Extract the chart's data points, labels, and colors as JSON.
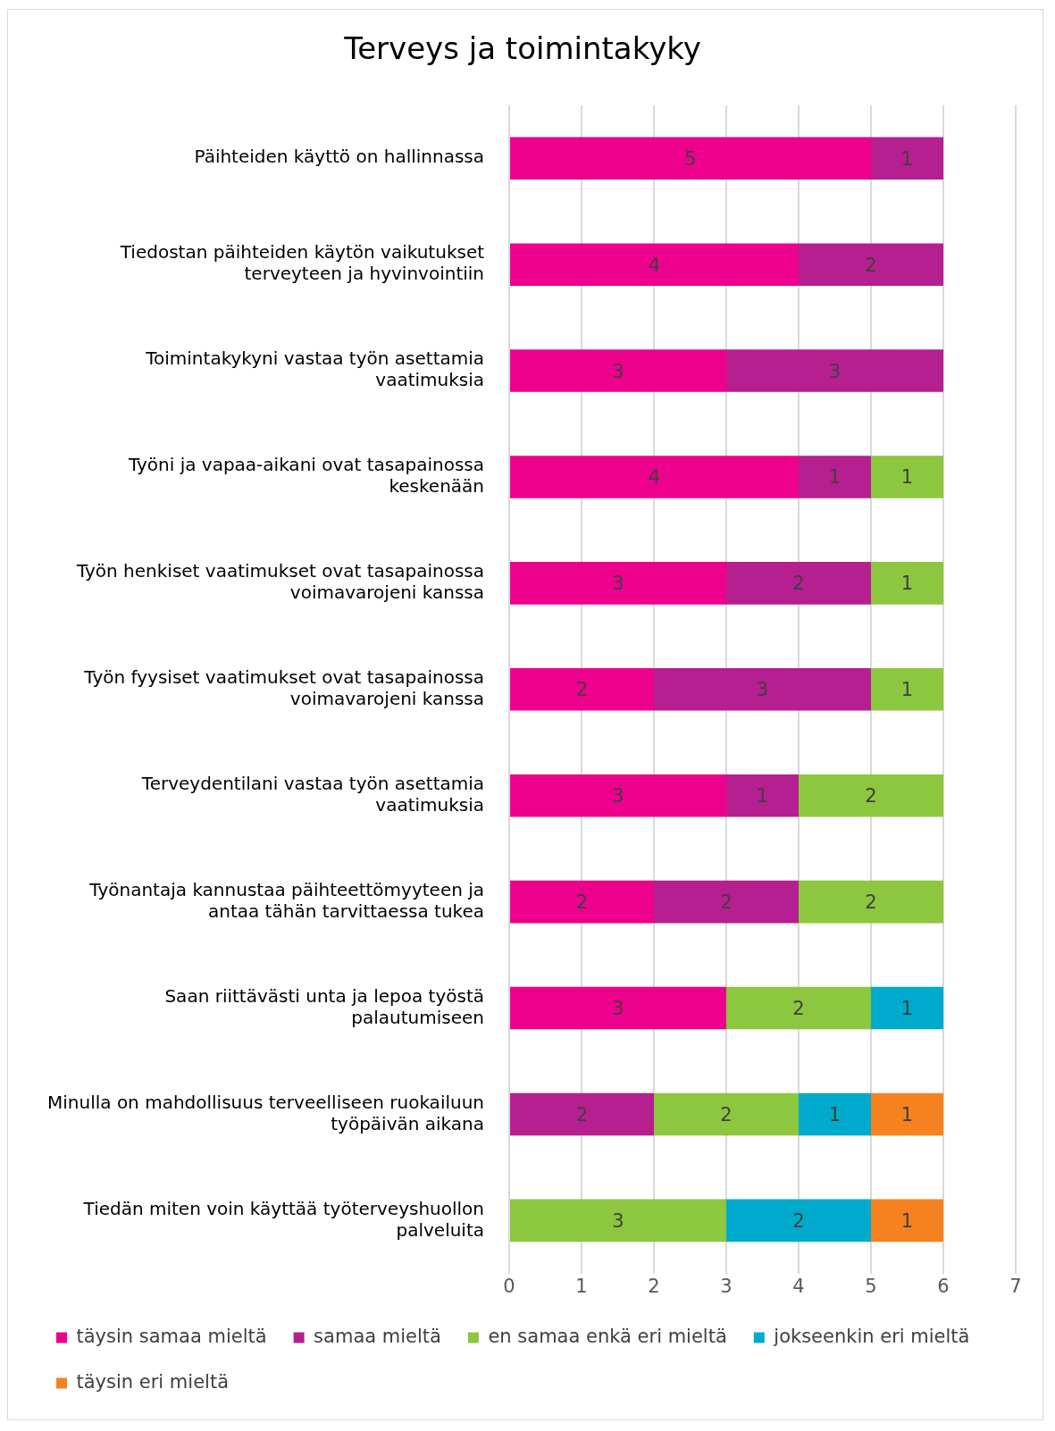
{
  "chart_data": {
    "type": "bar",
    "title": "Terveys ja toimintakyky",
    "orientation": "horizontal",
    "stacked": true,
    "data_labels": true,
    "grid": "x",
    "legend": "bottom",
    "categories": [
      "Päihteiden käyttö on hallinnassa",
      "Tiedostan päihteiden käytön vaikutukset terveyteen ja hyvinvointiin",
      "Toimintakykyni vastaa työn asettamia vaatimuksia",
      "Työni ja vapaa-aikani ovat tasapainossa keskenään",
      "Työn henkiset vaatimukset ovat tasapainossa voimavarojeni kanssa",
      "Työn fyysiset vaatimukset ovat tasapainossa voimavarojeni kanssa",
      "Terveydentilani vastaa työn asettamia vaatimuksia",
      "Työnantaja kannustaa päihteettömyyteen ja antaa tähän tarvittaessa tukea",
      "Saan riittävästi unta ja lepoa työstä palautumiseen",
      "Minulla on mahdollisuus terveelliseen ruokailuun työpäivän aikana",
      "Tiedän miten voin käyttää työterveyshuollon palveluita"
    ],
    "series": [
      {
        "name": "täysin samaa mieltä",
        "color": "#ec008c",
        "values": [
          5,
          4,
          3,
          4,
          3,
          2,
          3,
          2,
          3,
          null,
          null
        ]
      },
      {
        "name": "samaa mieltä",
        "color": "#b51f8f",
        "values": [
          1,
          2,
          3,
          1,
          2,
          3,
          1,
          2,
          null,
          2,
          null
        ]
      },
      {
        "name": "en samaa enkä eri mieltä",
        "color": "#8dc63f",
        "values": [
          null,
          null,
          null,
          1,
          1,
          1,
          2,
          2,
          2,
          2,
          3
        ]
      },
      {
        "name": "jokseenkin eri mieltä",
        "color": "#00aacc",
        "values": [
          null,
          null,
          null,
          null,
          null,
          null,
          null,
          null,
          1,
          1,
          2
        ]
      },
      {
        "name": "täysin eri mieltä",
        "color": "#f5821f",
        "values": [
          null,
          null,
          null,
          null,
          null,
          null,
          null,
          null,
          null,
          1,
          1
        ]
      }
    ],
    "xlim": [
      0,
      7
    ],
    "xticks": [
      0,
      1,
      2,
      3,
      4,
      5,
      6,
      7
    ]
  }
}
